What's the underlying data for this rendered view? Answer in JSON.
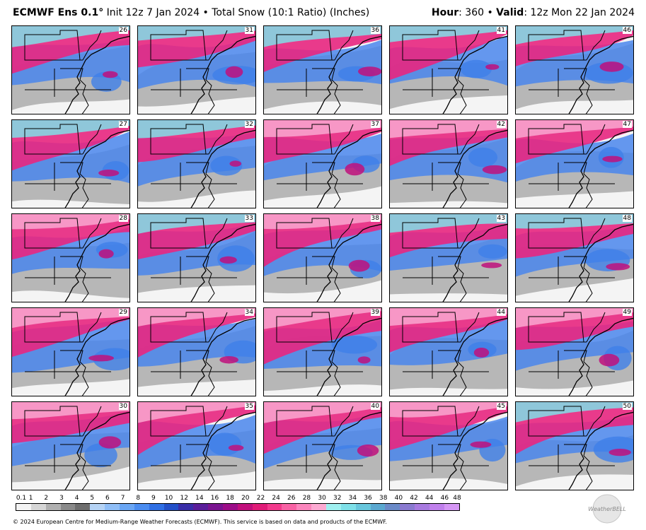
{
  "header": {
    "model": "ECMWF Ens 0.1",
    "degree": "°",
    "run_info": " Init 12z 7 Jan 2024 • Total Snow (10:1 Ratio) (Inches)",
    "hour_label": "Hour",
    "hour_value": ": 360 • ",
    "valid_label": "Valid",
    "valid_value": ": 12z Mon 22 Jan 2024"
  },
  "members": [
    [
      "26",
      "31",
      "36",
      "41",
      "46"
    ],
    [
      "27",
      "32",
      "37",
      "42",
      "47"
    ],
    [
      "28",
      "33",
      "38",
      "43",
      "48"
    ],
    [
      "29",
      "34",
      "39",
      "44",
      "49"
    ],
    [
      "30",
      "35",
      "40",
      "45",
      "50"
    ]
  ],
  "colorbar": {
    "labels": [
      "0.1",
      "1",
      "2",
      "3",
      "4",
      "5",
      "6",
      "7",
      "8",
      "9",
      "10",
      "12",
      "14",
      "16",
      "18",
      "20",
      "22",
      "24",
      "26",
      "28",
      "30",
      "32",
      "34",
      "36",
      "38",
      "40",
      "42",
      "44",
      "46",
      "48"
    ],
    "colors": [
      "#f3f3f3",
      "#d6d6d6",
      "#b0b0b0",
      "#8a8a8a",
      "#6e6e6e",
      "#b5d3f5",
      "#8fbef7",
      "#6aa6f4",
      "#4a8cf0",
      "#2f6fe4",
      "#2350c8",
      "#3a2ea8",
      "#5a1e9a",
      "#7a1490",
      "#9c0d88",
      "#c1107c",
      "#e01c78",
      "#f23a8c",
      "#f762a4",
      "#fb86bd",
      "#fcaad2",
      "#9ff0f0",
      "#7ee0e8",
      "#67c6dc",
      "#5aa8d0",
      "#6a8ac8",
      "#8a7ad0",
      "#a87ae0",
      "#c080ec",
      "#d596f5"
    ]
  },
  "footer": "© 2024 European Centre for Medium-Range Weather Forecasts (ECMWF). This service is based on data and products of the ECMWF.",
  "logo_text": "WeatherBELL"
}
